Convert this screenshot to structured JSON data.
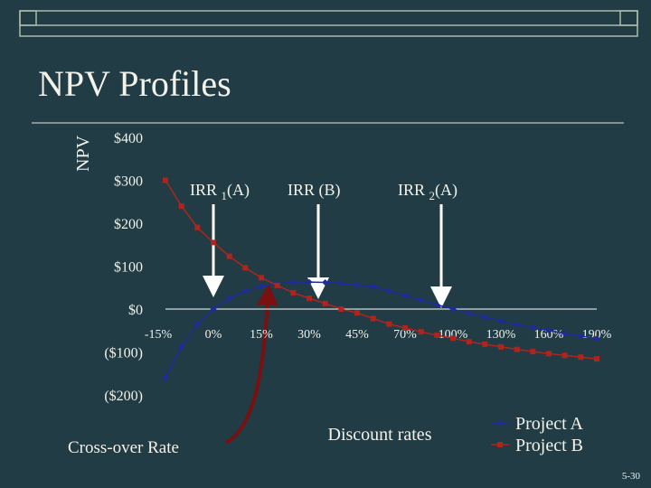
{
  "chart_data": {
    "type": "line",
    "title": "NPV Profiles",
    "y_label": "NPV",
    "x_label": "Discount rates",
    "categories": [
      "-15%",
      null,
      null,
      "0%",
      null,
      null,
      "15%",
      null,
      null,
      "30%",
      null,
      null,
      "45%",
      null,
      null,
      "70%",
      null,
      null,
      "100%",
      null,
      null,
      "130%",
      null,
      null,
      "160%",
      null,
      null,
      "190%"
    ],
    "series": [
      {
        "name": "Project A",
        "color": "#1f2a9c",
        "marker": "diamond",
        "values": [
          -160,
          -88,
          -36,
          0,
          25,
          42,
          53,
          59,
          62,
          63,
          62,
          60,
          56,
          52,
          42,
          32,
          21,
          10,
          0,
          -10,
          -19,
          -28,
          -36,
          -43,
          -50,
          -57,
          -63,
          -69
        ]
      },
      {
        "name": "Project B",
        "color": "#b0241e",
        "marker": "square",
        "values": [
          300,
          240,
          190,
          155,
          123,
          96,
          73,
          55,
          38,
          25,
          13,
          0,
          -9,
          -22,
          -35,
          -44,
          -53,
          -61,
          -68,
          -76,
          -82,
          -88,
          -94,
          -99,
          -104,
          -108,
          -112,
          -116
        ]
      }
    ],
    "ylim": [
      -200,
      400
    ],
    "yticks": [
      {
        "value": -200,
        "label": "($200)"
      },
      {
        "value": -100,
        "label": "($100)"
      },
      {
        "value": 0,
        "label": "$0"
      },
      {
        "value": 100,
        "label": "$100"
      },
      {
        "value": 200,
        "label": "$200"
      },
      {
        "value": 300,
        "label": "$300"
      },
      {
        "value": 400,
        "label": "$400"
      }
    ],
    "annotations": [
      {
        "text": "IRR ",
        "sub": "1",
        "suffix": "(A)"
      },
      {
        "text": "IRR (B)"
      },
      {
        "text": "IRR ",
        "sub": "2",
        "suffix": "(A)"
      },
      {
        "text": "Cross-over Rate"
      }
    ]
  },
  "page_number": "5-30"
}
